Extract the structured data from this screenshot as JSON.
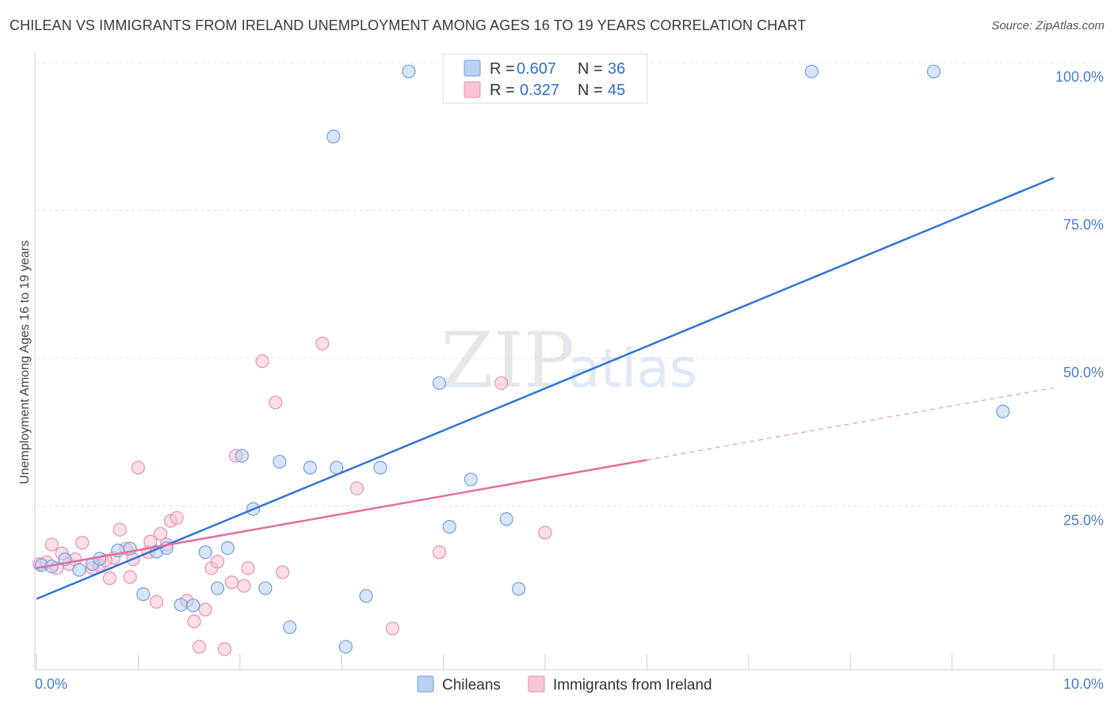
{
  "title": "CHILEAN VS IMMIGRANTS FROM IRELAND UNEMPLOYMENT AMONG AGES 16 TO 19 YEARS CORRELATION CHART",
  "source": "Source: ZipAtlas.com",
  "watermark": {
    "zip": "ZIP",
    "atlas": "atlas"
  },
  "legend": {
    "series1": {
      "r_label": "R =",
      "r_value": "0.607",
      "n_label": "N =",
      "n_value": "36"
    },
    "series2": {
      "r_label": "R =",
      "r_value": "0.327",
      "n_label": "N =",
      "n_value": "45"
    }
  },
  "colors": {
    "blue": "#2f75d6",
    "blue_fill": "#b9d1f3",
    "blue_stroke": "#6f9fe0",
    "pink": "#e66d9c",
    "pink_fill": "#f7c4d5",
    "pink_stroke": "#ea8fb0",
    "grid": "#e3e3e3",
    "axis_text": "#4a7cc9"
  },
  "chart_data": {
    "type": "scatter",
    "title": "CHILEAN VS IMMIGRANTS FROM IRELAND UNEMPLOYMENT AMONG AGES 16 TO 19 YEARS CORRELATION CHART",
    "xlabel": "",
    "ylabel": "Unemployment Among Ages 16 to 19 years",
    "xlim": [
      0,
      10
    ],
    "ylim": [
      0,
      100
    ],
    "x_tick_labels": {
      "left": "0.0%",
      "right": "10.0%"
    },
    "y_tick_labels": [
      {
        "value": 100,
        "label": "100.0%"
      },
      {
        "value": 75,
        "label": "75.0%"
      },
      {
        "value": 50,
        "label": "50.0%"
      },
      {
        "value": 25,
        "label": "25.0%"
      }
    ],
    "series": [
      {
        "name": "Chileans",
        "color": "#2f75d6",
        "points": [
          [
            0.05,
            15.0
          ],
          [
            0.15,
            14.8
          ],
          [
            0.28,
            16.0
          ],
          [
            0.42,
            14.2
          ],
          [
            0.55,
            15.2
          ],
          [
            0.62,
            16.1
          ],
          [
            0.8,
            17.5
          ],
          [
            0.92,
            17.8
          ],
          [
            1.05,
            10.1
          ],
          [
            1.18,
            17.3
          ],
          [
            1.28,
            17.9
          ],
          [
            1.42,
            8.3
          ],
          [
            1.54,
            8.2
          ],
          [
            1.66,
            17.2
          ],
          [
            1.78,
            11.1
          ],
          [
            1.88,
            17.9
          ],
          [
            2.02,
            33.5
          ],
          [
            2.13,
            24.5
          ],
          [
            2.25,
            11.1
          ],
          [
            2.39,
            32.5
          ],
          [
            2.49,
            4.5
          ],
          [
            2.69,
            31.5
          ],
          [
            2.92,
            87.5
          ],
          [
            2.95,
            31.5
          ],
          [
            3.04,
            1.2
          ],
          [
            3.24,
            9.8
          ],
          [
            3.38,
            31.5
          ],
          [
            3.66,
            98.5
          ],
          [
            3.96,
            45.8
          ],
          [
            4.06,
            21.5
          ],
          [
            4.27,
            29.5
          ],
          [
            4.62,
            22.8
          ],
          [
            4.74,
            11.0
          ],
          [
            7.62,
            98.5
          ],
          [
            8.82,
            98.5
          ],
          [
            9.5,
            41.0
          ]
        ]
      },
      {
        "name": "Immigrants from Ireland",
        "color": "#e66d9c",
        "points": [
          [
            0.03,
            15.2
          ],
          [
            0.1,
            15.5
          ],
          [
            0.15,
            18.5
          ],
          [
            0.2,
            14.5
          ],
          [
            0.32,
            15.2
          ],
          [
            0.38,
            16.0
          ],
          [
            0.45,
            18.8
          ],
          [
            0.55,
            14.5
          ],
          [
            0.62,
            15.0
          ],
          [
            0.72,
            12.8
          ],
          [
            0.76,
            16.2
          ],
          [
            0.82,
            21.0
          ],
          [
            0.88,
            17.8
          ],
          [
            0.92,
            13.0
          ],
          [
            0.95,
            16.0
          ],
          [
            1.0,
            31.5
          ],
          [
            1.1,
            17.2
          ],
          [
            1.12,
            19.0
          ],
          [
            1.18,
            8.8
          ],
          [
            1.22,
            20.3
          ],
          [
            1.28,
            18.5
          ],
          [
            1.32,
            22.5
          ],
          [
            1.38,
            23.0
          ],
          [
            1.48,
            9.0
          ],
          [
            1.55,
            5.5
          ],
          [
            1.6,
            1.2
          ],
          [
            1.66,
            7.5
          ],
          [
            1.72,
            14.5
          ],
          [
            1.78,
            15.6
          ],
          [
            1.85,
            0.8
          ],
          [
            1.92,
            12.1
          ],
          [
            1.96,
            33.5
          ],
          [
            2.04,
            11.5
          ],
          [
            2.08,
            14.5
          ],
          [
            2.22,
            49.5
          ],
          [
            2.35,
            42.5
          ],
          [
            2.42,
            13.8
          ],
          [
            2.81,
            52.5
          ],
          [
            3.15,
            28.0
          ],
          [
            3.5,
            4.3
          ],
          [
            3.96,
            17.2
          ],
          [
            4.57,
            45.8
          ],
          [
            5.0,
            20.5
          ],
          [
            0.25,
            17.0
          ],
          [
            0.68,
            15.8
          ]
        ]
      }
    ],
    "trend_lines": [
      {
        "series": "Chileans",
        "x0": 0,
        "y0": 9.3,
        "x1": 10,
        "y1": 80.5,
        "style": "solid"
      },
      {
        "series": "Immigrants from Ireland",
        "x0": 0,
        "y0": 14.5,
        "x1": 6,
        "y1": 32.8,
        "style": "solid"
      },
      {
        "series": "Immigrants from Ireland",
        "x0": 6,
        "y0": 32.8,
        "x1": 10,
        "y1": 45.0,
        "style": "dashed"
      }
    ],
    "legend_position": "top-center",
    "bottom_legend": [
      "Chileans",
      "Immigrants from Ireland"
    ]
  }
}
